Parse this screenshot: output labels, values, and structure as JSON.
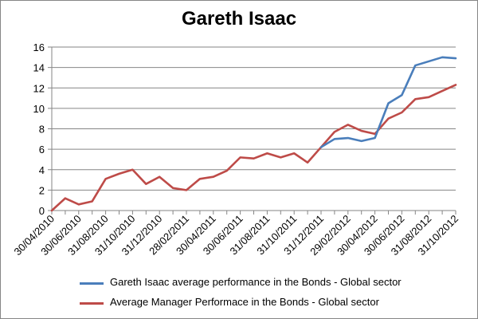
{
  "chart_data": {
    "type": "line",
    "title": "Gareth Isaac",
    "xlabel": "",
    "ylabel": "",
    "ylim": [
      0,
      16
    ],
    "yticks": [
      0,
      2,
      4,
      6,
      8,
      10,
      12,
      14,
      16
    ],
    "grid": true,
    "legend_position": "bottom",
    "x": [
      "30/04/2010",
      "31/05/2010",
      "30/06/2010",
      "31/07/2010",
      "31/08/2010",
      "30/09/2010",
      "31/10/2010",
      "30/11/2010",
      "31/12/2010",
      "31/01/2011",
      "28/02/2011",
      "31/03/2011",
      "30/04/2011",
      "31/05/2011",
      "30/06/2011",
      "31/07/2011",
      "31/08/2011",
      "30/09/2011",
      "31/10/2011",
      "30/11/2011",
      "31/12/2011",
      "31/01/2012",
      "29/02/2012",
      "31/03/2012",
      "30/04/2012",
      "31/05/2012",
      "30/06/2012",
      "31/07/2012",
      "31/08/2012",
      "30/09/2012",
      "31/10/2012"
    ],
    "x_tick_labels": [
      "30/04/2010",
      "30/06/2010",
      "31/08/2010",
      "31/10/2010",
      "31/12/2010",
      "28/02/2011",
      "30/04/2011",
      "30/06/2011",
      "31/08/2011",
      "31/10/2011",
      "31/12/2011",
      "29/02/2012",
      "30/04/2012",
      "30/06/2012",
      "31/08/2012",
      "31/10/2012"
    ],
    "series": [
      {
        "name": "Gareth Isaac average performance in the Bonds - Global sector",
        "color": "#4a7ebb",
        "values": [
          null,
          null,
          null,
          null,
          null,
          null,
          null,
          null,
          null,
          null,
          null,
          null,
          null,
          null,
          null,
          null,
          null,
          null,
          null,
          null,
          6.2,
          7.0,
          7.1,
          6.8,
          7.1,
          10.5,
          11.3,
          14.2,
          14.6,
          15.0,
          14.9
        ]
      },
      {
        "name": "Average Manager Performace in the Bonds - Global sector",
        "color": "#be4b48",
        "values": [
          0,
          1.2,
          0.6,
          0.9,
          3.1,
          3.6,
          4.0,
          2.6,
          3.3,
          2.2,
          2.0,
          3.1,
          3.3,
          3.9,
          5.2,
          5.1,
          5.6,
          5.2,
          5.6,
          4.7,
          6.2,
          7.7,
          8.4,
          7.8,
          7.5,
          9.0,
          9.6,
          10.9,
          11.1,
          11.7,
          12.3
        ]
      }
    ]
  }
}
